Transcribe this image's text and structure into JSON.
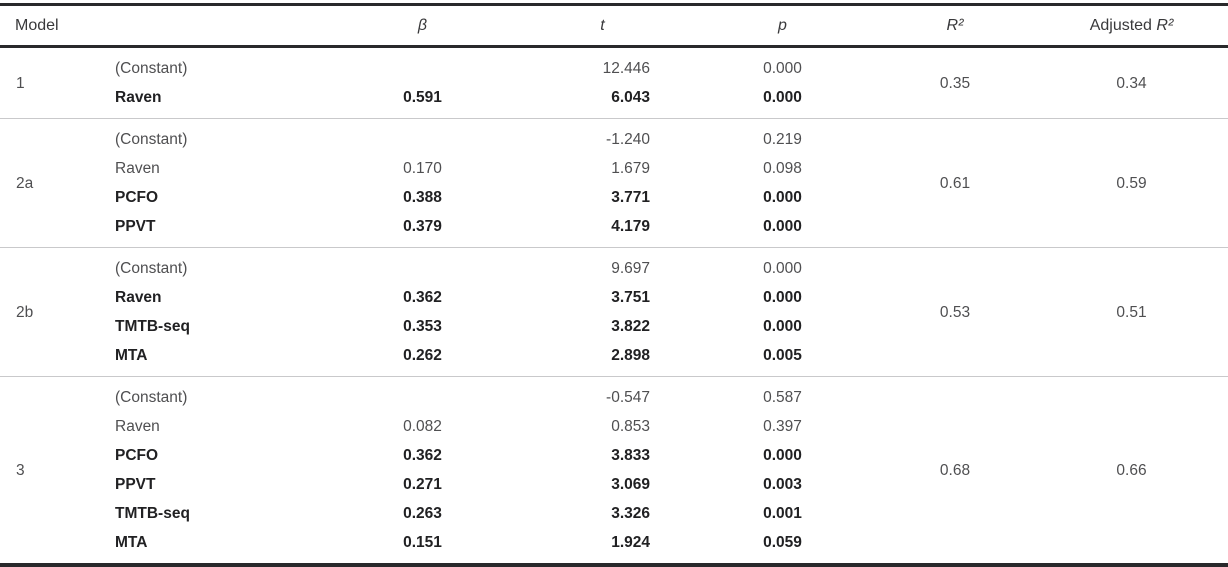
{
  "table": {
    "headers": {
      "model": "Model",
      "beta": "β",
      "t": "t",
      "p": "p",
      "r2": "R²",
      "adjusted_prefix": "Adjusted "
    },
    "blocks": [
      {
        "model": "1",
        "r2": "0.35",
        "adj_r2": "0.34",
        "rows": [
          {
            "predictor": "(Constant)",
            "beta": "",
            "t": "12.446",
            "p": "0.000",
            "emphasis": false
          },
          {
            "predictor": "Raven",
            "beta": "0.591",
            "t": "6.043",
            "p": "0.000",
            "emphasis": true
          }
        ]
      },
      {
        "model": "2a",
        "r2": "0.61",
        "adj_r2": "0.59",
        "rows": [
          {
            "predictor": "(Constant)",
            "beta": "",
            "t": "-1.240",
            "p": "0.219",
            "emphasis": false
          },
          {
            "predictor": "Raven",
            "beta": "0.170",
            "t": "1.679",
            "p": "0.098",
            "emphasis": false
          },
          {
            "predictor": "PCFO",
            "beta": "0.388",
            "t": "3.771",
            "p": "0.000",
            "emphasis": true
          },
          {
            "predictor": "PPVT",
            "beta": "0.379",
            "t": "4.179",
            "p": "0.000",
            "emphasis": true
          }
        ]
      },
      {
        "model": "2b",
        "r2": "0.53",
        "adj_r2": "0.51",
        "rows": [
          {
            "predictor": "(Constant)",
            "beta": "",
            "t": "9.697",
            "p": "0.000",
            "emphasis": false
          },
          {
            "predictor": "Raven",
            "beta": "0.362",
            "t": "3.751",
            "p": "0.000",
            "emphasis": true
          },
          {
            "predictor": "TMTB-seq",
            "beta": "0.353",
            "t": "3.822",
            "p": "0.000",
            "emphasis": true
          },
          {
            "predictor": "MTA",
            "beta": "0.262",
            "t": "2.898",
            "p": "0.005",
            "emphasis": true
          }
        ]
      },
      {
        "model": "3",
        "r2": "0.68",
        "adj_r2": "0.66",
        "rows": [
          {
            "predictor": "(Constant)",
            "beta": "",
            "t": "-0.547",
            "p": "0.587",
            "emphasis": false
          },
          {
            "predictor": "Raven",
            "beta": "0.082",
            "t": "0.853",
            "p": "0.397",
            "emphasis": false
          },
          {
            "predictor": "PCFO",
            "beta": "0.362",
            "t": "3.833",
            "p": "0.000",
            "emphasis": true
          },
          {
            "predictor": "PPVT",
            "beta": "0.271",
            "t": "3.069",
            "p": "0.003",
            "emphasis": true
          },
          {
            "predictor": "TMTB-seq",
            "beta": "0.263",
            "t": "3.326",
            "p": "0.001",
            "emphasis": true
          },
          {
            "predictor": "MTA",
            "beta": "0.151",
            "t": "1.924",
            "p": "0.059",
            "emphasis": true
          }
        ]
      }
    ]
  }
}
